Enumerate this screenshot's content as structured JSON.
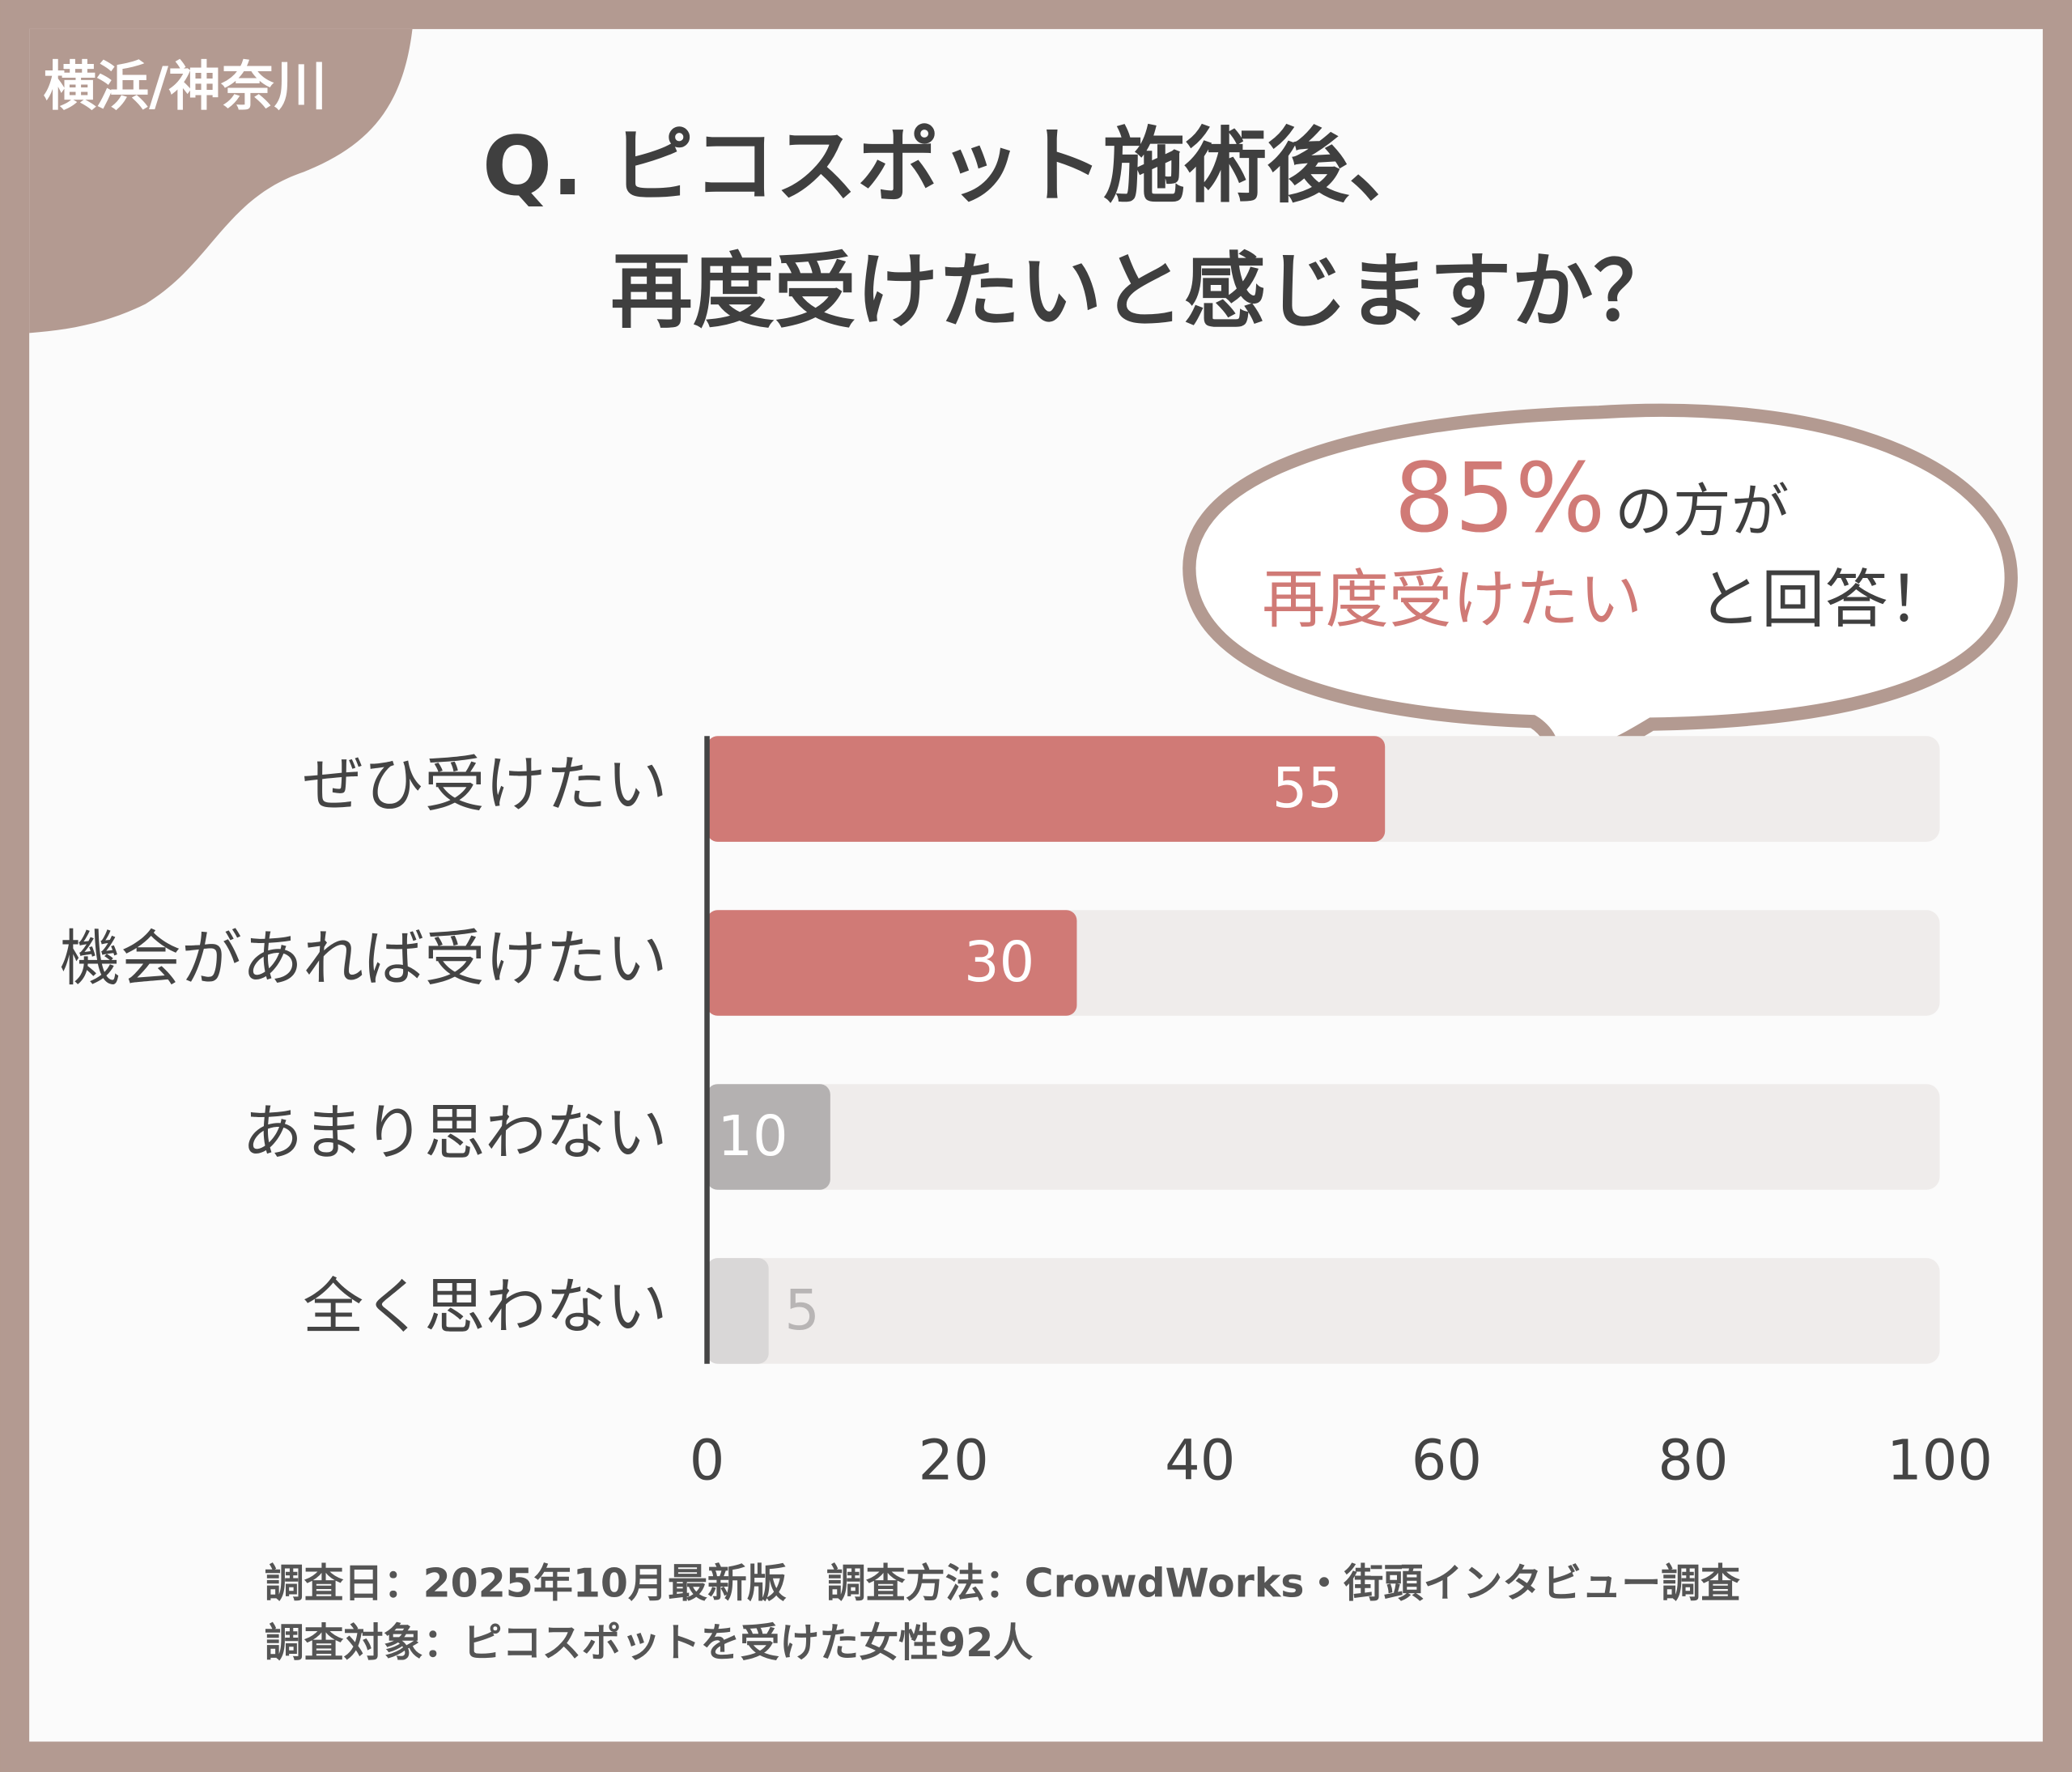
{
  "chart_data": {
    "type": "bar",
    "orientation": "horizontal",
    "tag": "横浜/神奈川",
    "title": [
      "Q. ピコスポット施術後、",
      "再度受けたいと感じますか？"
    ],
    "callout": {
      "figure": "85%",
      "line1_rest": "の方が",
      "line2_highlight": "再度受けたい",
      "line2_rest": "と回答！"
    },
    "categories": [
      "ぜひ受けたい",
      "機会があれば受けたい",
      "あまり思わない",
      "全く思わない"
    ],
    "values": [
      55,
      30,
      10,
      5
    ],
    "colors": [
      "#d07a76",
      "#d07a76",
      "#b4b1b1",
      "#d9d7d7"
    ],
    "xlim": [
      0,
      100
    ],
    "xticks": [
      0,
      20,
      40,
      60,
      80,
      100
    ],
    "footnotes": [
      "調査日：2025年10月最新版　調査方法：CrowdWorks・街頭インタビュー調査",
      "調査対象：ピコスポットを受けた女性92人"
    ]
  }
}
